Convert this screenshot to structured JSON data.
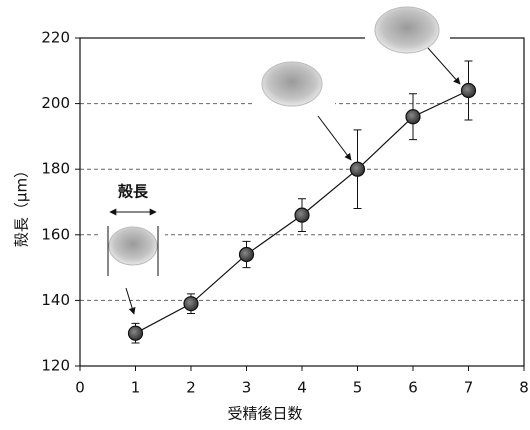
{
  "chart_data": {
    "type": "line",
    "x_label": "受精後日数",
    "y_label": "殻長（μm）",
    "annotation": "殻長",
    "x": [
      1,
      2,
      3,
      4,
      5,
      6,
      7
    ],
    "series": [
      {
        "color": "#555555",
        "values": [
          130,
          139,
          154,
          166,
          180,
          196,
          204
        ],
        "errors": [
          3,
          3,
          4,
          5,
          12,
          7,
          9
        ]
      }
    ],
    "xlim": [
      0,
      8
    ],
    "xticks": [
      0,
      1,
      2,
      3,
      4,
      5,
      6,
      7,
      8
    ],
    "ylim": [
      120,
      220
    ],
    "yticks": [
      120,
      140,
      160,
      180,
      200,
      220
    ],
    "grid": true
  }
}
